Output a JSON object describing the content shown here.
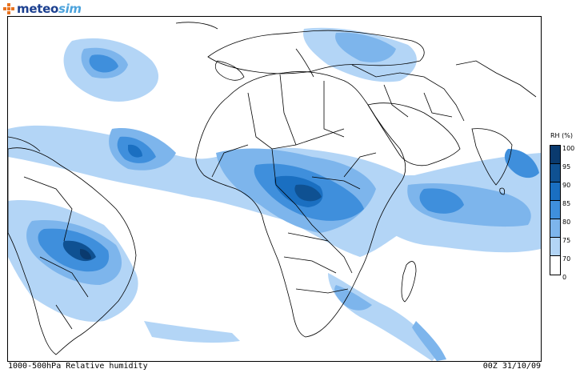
{
  "brand": {
    "name_primary": "meteo",
    "name_secondary": "sim",
    "accent_color": "#e8731f",
    "primary_color": "#1b3f8f",
    "secondary_color": "#4da3dc"
  },
  "map": {
    "variable": "Relative humidity",
    "units": "RH (%)",
    "coastline_color": "#000000"
  },
  "legend": {
    "title": "RH (%)",
    "levels": [
      {
        "label": "100",
        "color": "#0a3a6e"
      },
      {
        "label": "95",
        "color": "#0f5192"
      },
      {
        "label": "90",
        "color": "#1a6fc1"
      },
      {
        "label": "85",
        "color": "#3f8fdc"
      },
      {
        "label": "80",
        "color": "#7db5ec"
      },
      {
        "label": "75",
        "color": "#b3d5f6"
      },
      {
        "label": "70",
        "color": "#ffffff"
      },
      {
        "label": "0",
        "color": ""
      }
    ]
  },
  "footer": {
    "left": "1000-500hPa Relative humidity",
    "right": "00Z 31/10/09"
  }
}
